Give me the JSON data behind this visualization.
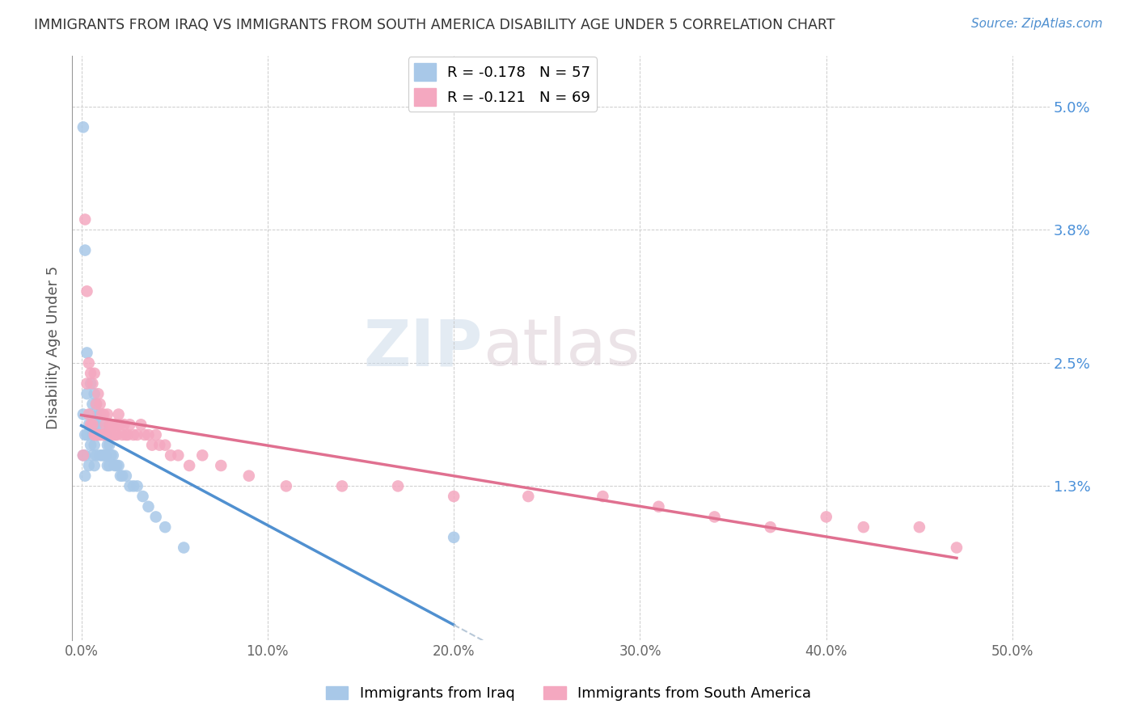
{
  "title": "IMMIGRANTS FROM IRAQ VS IMMIGRANTS FROM SOUTH AMERICA DISABILITY AGE UNDER 5 CORRELATION CHART",
  "source": "Source: ZipAtlas.com",
  "ylabel": "Disability Age Under 5",
  "xlabel_ticks": [
    "0.0%",
    "10.0%",
    "20.0%",
    "30.0%",
    "40.0%",
    "50.0%"
  ],
  "xlabel_vals": [
    0.0,
    0.1,
    0.2,
    0.3,
    0.4,
    0.5
  ],
  "ylabel_ticks": [
    "1.3%",
    "2.5%",
    "3.8%",
    "5.0%"
  ],
  "ylabel_vals": [
    0.013,
    0.025,
    0.038,
    0.05
  ],
  "xlim": [
    -0.005,
    0.52
  ],
  "ylim": [
    -0.002,
    0.055
  ],
  "legend1_label": "Immigrants from Iraq",
  "legend2_label": "Immigrants from South America",
  "R1": -0.178,
  "N1": 57,
  "R2": -0.121,
  "N2": 69,
  "color_iraq": "#a8c8e8",
  "color_sa": "#f4a8c0",
  "color_iraq_line": "#5090d0",
  "color_sa_line": "#e07090",
  "color_trendline_ext": "#b8c8d8",
  "watermark_top": "ZIP",
  "watermark_bottom": "atlas",
  "iraq_x": [
    0.001,
    0.001,
    0.001,
    0.002,
    0.002,
    0.002,
    0.002,
    0.003,
    0.003,
    0.003,
    0.004,
    0.004,
    0.005,
    0.005,
    0.005,
    0.006,
    0.006,
    0.006,
    0.007,
    0.007,
    0.007,
    0.007,
    0.008,
    0.008,
    0.008,
    0.009,
    0.009,
    0.01,
    0.01,
    0.01,
    0.011,
    0.011,
    0.012,
    0.012,
    0.013,
    0.013,
    0.014,
    0.014,
    0.015,
    0.015,
    0.016,
    0.017,
    0.018,
    0.019,
    0.02,
    0.021,
    0.022,
    0.024,
    0.026,
    0.028,
    0.03,
    0.033,
    0.036,
    0.04,
    0.045,
    0.055,
    0.2
  ],
  "iraq_y": [
    0.048,
    0.02,
    0.016,
    0.036,
    0.018,
    0.016,
    0.014,
    0.026,
    0.022,
    0.018,
    0.019,
    0.015,
    0.023,
    0.02,
    0.017,
    0.021,
    0.018,
    0.016,
    0.022,
    0.019,
    0.017,
    0.015,
    0.021,
    0.019,
    0.016,
    0.02,
    0.018,
    0.02,
    0.018,
    0.016,
    0.019,
    0.016,
    0.018,
    0.016,
    0.018,
    0.016,
    0.017,
    0.015,
    0.017,
    0.015,
    0.016,
    0.016,
    0.015,
    0.015,
    0.015,
    0.014,
    0.014,
    0.014,
    0.013,
    0.013,
    0.013,
    0.012,
    0.011,
    0.01,
    0.009,
    0.007,
    0.008
  ],
  "sa_x": [
    0.001,
    0.002,
    0.003,
    0.003,
    0.004,
    0.004,
    0.005,
    0.005,
    0.006,
    0.006,
    0.007,
    0.007,
    0.008,
    0.008,
    0.009,
    0.009,
    0.01,
    0.01,
    0.011,
    0.011,
    0.012,
    0.012,
    0.013,
    0.013,
    0.014,
    0.015,
    0.015,
    0.016,
    0.016,
    0.017,
    0.018,
    0.018,
    0.019,
    0.02,
    0.02,
    0.021,
    0.022,
    0.023,
    0.024,
    0.025,
    0.026,
    0.028,
    0.03,
    0.032,
    0.034,
    0.036,
    0.038,
    0.04,
    0.042,
    0.045,
    0.048,
    0.052,
    0.058,
    0.065,
    0.075,
    0.09,
    0.11,
    0.14,
    0.17,
    0.2,
    0.24,
    0.28,
    0.31,
    0.34,
    0.37,
    0.4,
    0.42,
    0.45,
    0.47
  ],
  "sa_y": [
    0.016,
    0.039,
    0.023,
    0.032,
    0.025,
    0.02,
    0.024,
    0.019,
    0.023,
    0.019,
    0.024,
    0.018,
    0.021,
    0.018,
    0.022,
    0.018,
    0.021,
    0.018,
    0.02,
    0.018,
    0.02,
    0.018,
    0.019,
    0.018,
    0.02,
    0.019,
    0.018,
    0.019,
    0.018,
    0.019,
    0.019,
    0.018,
    0.018,
    0.02,
    0.019,
    0.019,
    0.018,
    0.019,
    0.018,
    0.018,
    0.019,
    0.018,
    0.018,
    0.019,
    0.018,
    0.018,
    0.017,
    0.018,
    0.017,
    0.017,
    0.016,
    0.016,
    0.015,
    0.016,
    0.015,
    0.014,
    0.013,
    0.013,
    0.013,
    0.012,
    0.012,
    0.012,
    0.011,
    0.01,
    0.009,
    0.01,
    0.009,
    0.009,
    0.007
  ]
}
